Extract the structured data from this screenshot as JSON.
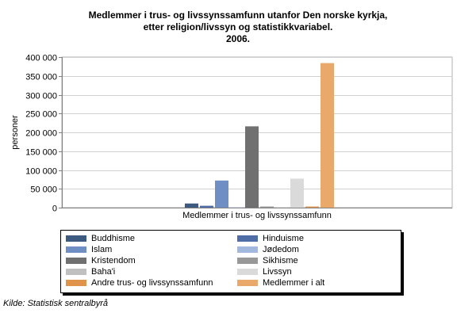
{
  "chart_data": {
    "type": "bar",
    "title": [
      "Medlemmer i trus- og livssynssamfunn utanfor Den norske kyrkja,",
      "etter religion/livssyn og statistikkvariabel.",
      "2006."
    ],
    "ylabel": "personer",
    "xlabel": "Medlemmer i trus- og livssynssamfunn",
    "categories": [
      "Medlemmer i trus- og livssynssamfunn"
    ],
    "ylim": [
      0,
      400000
    ],
    "yticks": [
      0,
      50000,
      100000,
      150000,
      200000,
      250000,
      300000,
      350000,
      400000
    ],
    "ytick_labels": [
      "0",
      "50 000",
      "100 000",
      "150 000",
      "200 000",
      "250 000",
      "300 000",
      "350 000",
      "400 000"
    ],
    "grid": true,
    "legend_position": "bottom",
    "series": [
      {
        "name": "Buddhisme",
        "values": [
          11000
        ],
        "color": "#3d5a80"
      },
      {
        "name": "Hinduisme",
        "values": [
          5000
        ],
        "color": "#4f6ea8"
      },
      {
        "name": "Islam",
        "values": [
          72000
        ],
        "color": "#6f8fc4"
      },
      {
        "name": "Jødedom",
        "values": [
          800
        ],
        "color": "#a3b8de"
      },
      {
        "name": "Kristendom",
        "values": [
          216000
        ],
        "color": "#707070"
      },
      {
        "name": "Sikhisme",
        "values": [
          3000
        ],
        "color": "#989898"
      },
      {
        "name": "Baha'i",
        "values": [
          1000
        ],
        "color": "#c0c0c0"
      },
      {
        "name": "Livssyn",
        "values": [
          77000
        ],
        "color": "#dadada"
      },
      {
        "name": "Andre trus- og livssynssamfunn",
        "values": [
          3000
        ],
        "color": "#e0944a"
      },
      {
        "name": "Medlemmer i alt",
        "values": [
          384000
        ],
        "color": "#e8a96a"
      }
    ]
  },
  "source": "Kilde: Statistisk sentralbyrå"
}
